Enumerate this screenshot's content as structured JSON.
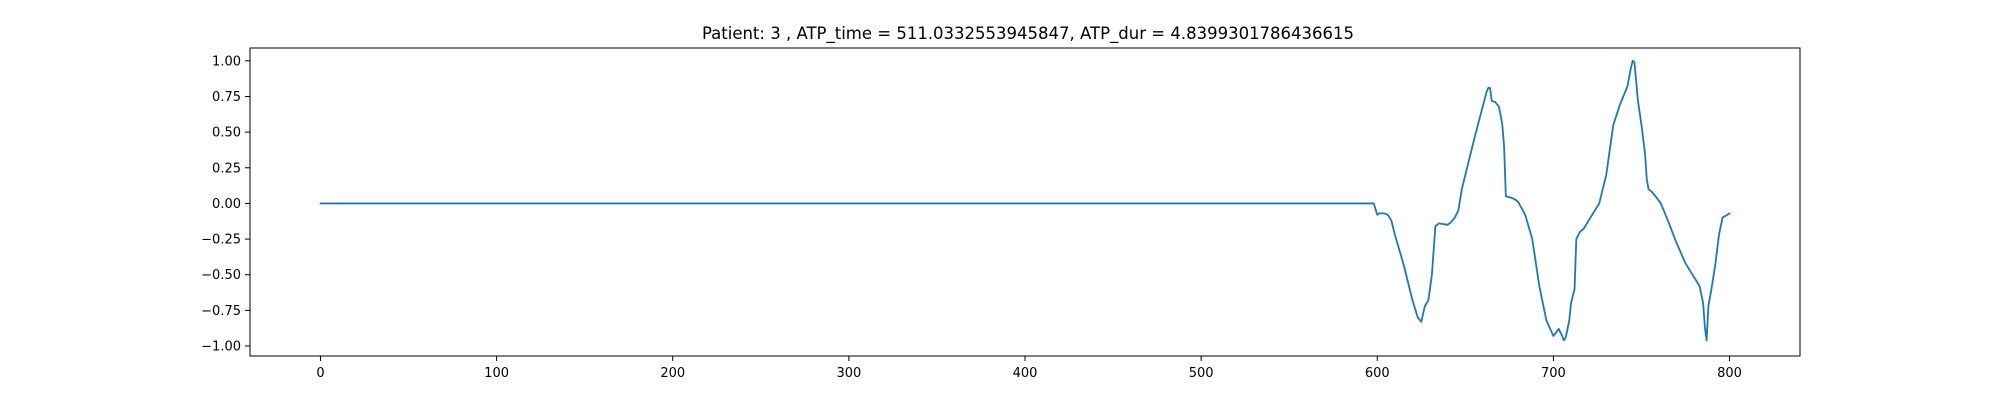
{
  "chart_data": {
    "type": "line",
    "title": "Patient: 3 , ATP_time = 511.0332553945847, ATP_dur = 4.8399301786436615",
    "xlabel": "",
    "ylabel": "",
    "xlim": [
      -40,
      840
    ],
    "ylim": [
      -1.07,
      1.09
    ],
    "grid": false,
    "legend": "none",
    "x_ticks": [
      0,
      100,
      200,
      300,
      400,
      500,
      600,
      700,
      800
    ],
    "x_tick_labels": [
      "0",
      "100",
      "200",
      "300",
      "400",
      "500",
      "600",
      "700",
      "800"
    ],
    "y_ticks": [
      1.0,
      0.75,
      0.5,
      0.25,
      0.0,
      -0.25,
      -0.5,
      -0.75,
      -1.0
    ],
    "y_tick_labels": [
      "1.00",
      "0.75",
      "0.50",
      "0.25",
      "0.00",
      "−0.25",
      "−0.50",
      "−0.75",
      "−1.00"
    ],
    "series": [
      {
        "color": "#1f77b4",
        "x": [
          0,
          598,
          600,
          601,
          604,
          606,
          608,
          610,
          615,
          620,
          623,
          625,
          627,
          629,
          631,
          633,
          635,
          640,
          642,
          644,
          646,
          648,
          655,
          662,
          663,
          664,
          665,
          667,
          669,
          670,
          671,
          672,
          673,
          676,
          678,
          680,
          684,
          688,
          692,
          696,
          700,
          703,
          705,
          706,
          707,
          708,
          709,
          710,
          712,
          713,
          715,
          717,
          720,
          726,
          730,
          734,
          738,
          742,
          744,
          745,
          746,
          748,
          750,
          752,
          753,
          754,
          756,
          758,
          761,
          765,
          770,
          775,
          780,
          783,
          785,
          786,
          787,
          788,
          790,
          792,
          794,
          796,
          800
        ],
        "y": [
          0.0,
          0.0,
          -0.08,
          -0.07,
          -0.07,
          -0.08,
          -0.12,
          -0.22,
          -0.43,
          -0.68,
          -0.8,
          -0.83,
          -0.72,
          -0.68,
          -0.5,
          -0.16,
          -0.14,
          -0.15,
          -0.13,
          -0.1,
          -0.05,
          0.1,
          0.45,
          0.78,
          0.81,
          0.81,
          0.72,
          0.71,
          0.68,
          0.62,
          0.55,
          0.4,
          0.05,
          0.04,
          0.03,
          0.01,
          -0.08,
          -0.25,
          -0.58,
          -0.82,
          -0.93,
          -0.88,
          -0.93,
          -0.96,
          -0.94,
          -0.88,
          -0.82,
          -0.7,
          -0.6,
          -0.25,
          -0.2,
          -0.18,
          -0.12,
          0.0,
          0.2,
          0.55,
          0.7,
          0.82,
          0.95,
          1.0,
          0.99,
          0.72,
          0.55,
          0.35,
          0.17,
          0.1,
          0.08,
          0.05,
          0.0,
          -0.12,
          -0.28,
          -0.42,
          -0.52,
          -0.58,
          -0.7,
          -0.87,
          -0.96,
          -0.72,
          -0.58,
          -0.42,
          -0.22,
          -0.1,
          -0.07
        ]
      }
    ]
  }
}
